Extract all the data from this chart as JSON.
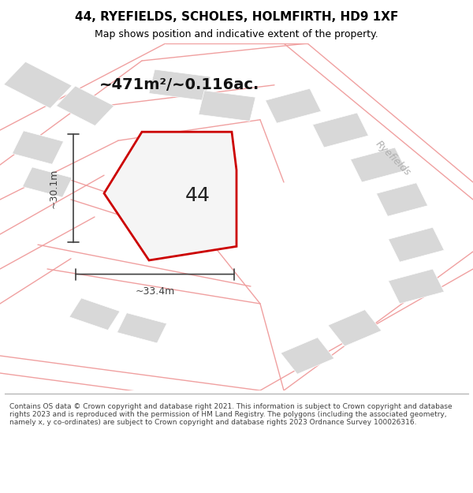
{
  "title": "44, RYEFIELDS, SCHOLES, HOLMFIRTH, HD9 1XF",
  "subtitle": "Map shows position and indicative extent of the property.",
  "area_label": "~471m²/~0.116ac.",
  "plot_number": "44",
  "dim_width": "~33.4m",
  "dim_height": "~30.1m",
  "footer": "Contains OS data © Crown copyright and database right 2021. This information is subject to Crown copyright and database rights 2023 and is reproduced with the permission of HM Land Registry. The polygons (including the associated geometry, namely x, y co-ordinates) are subject to Crown copyright and database rights 2023 Ordnance Survey 100026316.",
  "bg_color": "#ffffff",
  "map_bg": "#f0f0f0",
  "road_color": "#ffffff",
  "building_color": "#d8d8d8",
  "plot_fill": "#f5f5f5",
  "plot_edge_color": "#cc0000",
  "street_line_color": "#f0a0a0",
  "street_label_color": "#b0b0b0",
  "dim_line_color": "#404040",
  "title_color": "#000000",
  "footer_color": "#404040"
}
